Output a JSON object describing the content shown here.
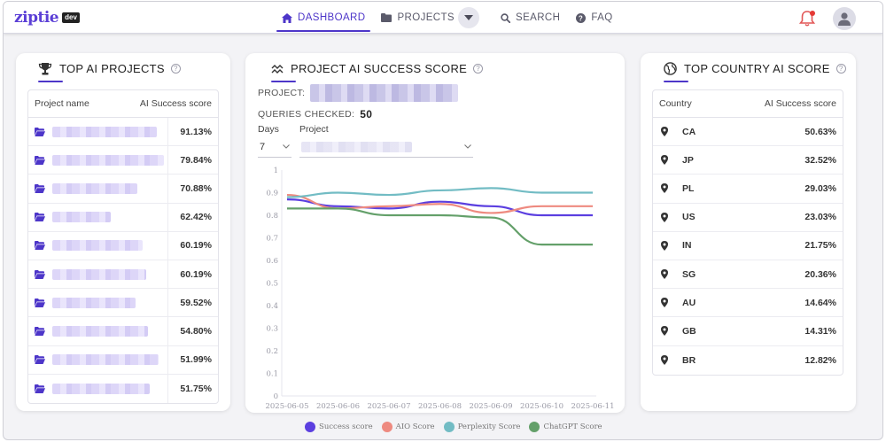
{
  "app": {
    "logo_text": "ziptie",
    "logo_badge": "dev"
  },
  "nav": {
    "items": [
      {
        "label": "DASHBOARD",
        "icon": "home-icon",
        "active": true
      },
      {
        "label": "PROJECTS",
        "icon": "folder-icon",
        "active": false
      },
      {
        "label": "SEARCH",
        "icon": "search-icon",
        "active": false
      },
      {
        "label": "FAQ",
        "icon": "question-circle-icon",
        "active": false
      }
    ]
  },
  "top_projects": {
    "title": "TOP AI PROJECTS",
    "col_project": "Project name",
    "col_score": "AI Success score",
    "rows": [
      {
        "score": "91.13%"
      },
      {
        "score": "79.84%"
      },
      {
        "score": "70.88%"
      },
      {
        "score": "62.42%"
      },
      {
        "score": "60.19%"
      },
      {
        "score": "60.19%"
      },
      {
        "score": "59.52%"
      },
      {
        "score": "54.80%"
      },
      {
        "score": "51.99%"
      },
      {
        "score": "51.75%"
      }
    ]
  },
  "success_score": {
    "title": "PROJECT AI SUCCESS SCORE",
    "project_label": "PROJECT:",
    "queries_label": "QUERIES CHECKED:",
    "queries_value": "50",
    "days_label": "Days",
    "days_value": "7",
    "project_select_label": "Project"
  },
  "top_countries": {
    "title": "TOP COUNTRY AI SCORE",
    "col_country": "Country",
    "col_score": "AI Success score",
    "rows": [
      {
        "country": "CA",
        "score": "50.63%"
      },
      {
        "country": "JP",
        "score": "32.52%"
      },
      {
        "country": "PL",
        "score": "29.03%"
      },
      {
        "country": "US",
        "score": "23.03%"
      },
      {
        "country": "IN",
        "score": "21.75%"
      },
      {
        "country": "SG",
        "score": "20.36%"
      },
      {
        "country": "AU",
        "score": "14.64%"
      },
      {
        "country": "GB",
        "score": "14.31%"
      },
      {
        "country": "BR",
        "score": "12.82%"
      }
    ]
  },
  "chart_data": {
    "type": "line",
    "title": "",
    "xlabel": "",
    "ylabel": "",
    "x": [
      "2025-06-05",
      "2025-06-06",
      "2025-06-07",
      "2025-06-08",
      "2025-06-09",
      "2025-06-10",
      "2025-06-11"
    ],
    "ylim": [
      0,
      1
    ],
    "yticks": [
      "0",
      "0.1",
      "0.2",
      "0.3",
      "0.4",
      "0.5",
      "0.6",
      "0.7",
      "0.8",
      "0.9",
      "1"
    ],
    "grid": false,
    "legend_position": "bottom",
    "series": [
      {
        "name": "Success score",
        "color": "#5b3fe0",
        "values": [
          0.87,
          0.84,
          0.83,
          0.86,
          0.84,
          0.8,
          0.8
        ]
      },
      {
        "name": "AIO Score",
        "color": "#ee8a80",
        "values": [
          0.89,
          0.83,
          0.84,
          0.85,
          0.81,
          0.84,
          0.84
        ]
      },
      {
        "name": "Perplexity Score",
        "color": "#72bcc4",
        "values": [
          0.88,
          0.9,
          0.89,
          0.91,
          0.92,
          0.9,
          0.9
        ]
      },
      {
        "name": "ChatGPT Score",
        "color": "#64a06a",
        "values": [
          0.83,
          0.83,
          0.8,
          0.8,
          0.79,
          0.67,
          0.67
        ]
      }
    ]
  }
}
